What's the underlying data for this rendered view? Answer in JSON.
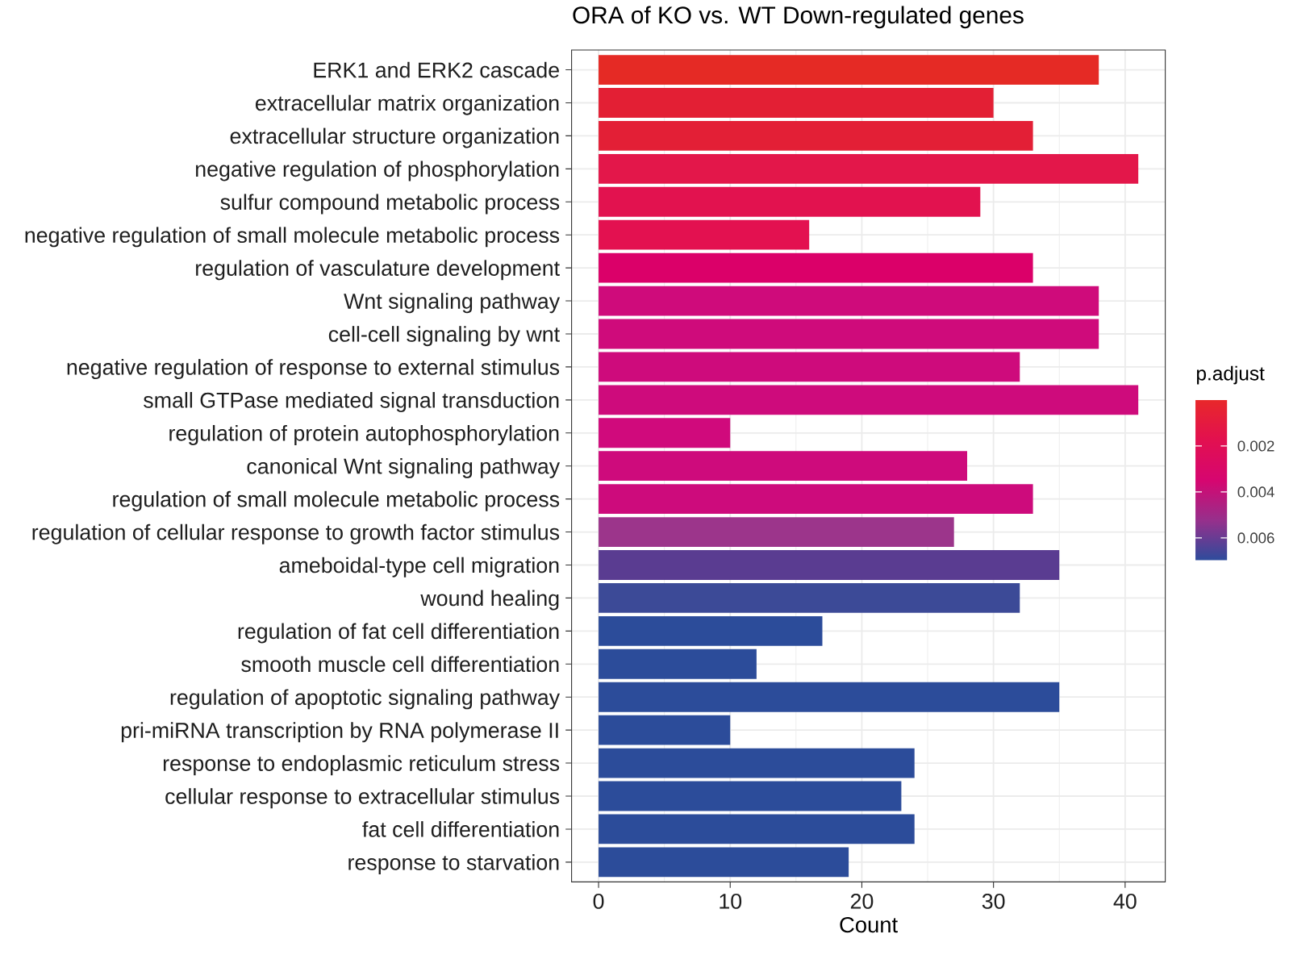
{
  "chart_data": {
    "type": "bar",
    "orientation": "horizontal",
    "title": "ORA of KO vs. WT Down-regulated genes",
    "xlabel": "Count",
    "clabel": "p.adjust",
    "categories": [
      "ERK1 and ERK2 cascade",
      "extracellular matrix organization",
      "extracellular structure organization",
      "negative regulation of phosphorylation",
      "sulfur compound metabolic process",
      "negative regulation of small molecule metabolic process",
      "regulation of vasculature development",
      "Wnt signaling pathway",
      "cell-cell signaling by wnt",
      "negative regulation of response to external stimulus",
      "small GTPase mediated signal transduction",
      "regulation of protein autophosphorylation",
      "canonical Wnt signaling pathway",
      "regulation of small molecule metabolic process",
      "regulation of cellular response to growth factor stimulus",
      "ameboidal-type cell migration",
      "wound healing",
      "regulation of fat cell differentiation",
      "smooth muscle cell differentiation",
      "regulation of apoptotic signaling pathway",
      "pri-miRNA transcription by RNA polymerase II",
      "response to endoplasmic reticulum stress",
      "cellular response to extracellular stimulus",
      "fat cell differentiation",
      "response to starvation"
    ],
    "values": [
      38,
      30,
      33,
      41,
      29,
      16,
      33,
      38,
      38,
      32,
      41,
      10,
      28,
      33,
      27,
      35,
      32,
      17,
      12,
      35,
      10,
      24,
      23,
      24,
      19
    ],
    "colors": [
      "#E52A25",
      "#E31F34",
      "#E31F36",
      "#E3174A",
      "#E2124F",
      "#E31150",
      "#DB0069",
      "#CF0B7B",
      "#CF0B7B",
      "#CE0B7C",
      "#CE0B7C",
      "#D00A7C",
      "#CE0B7C",
      "#CD0B7C",
      "#9C358B",
      "#5A3C91",
      "#3C4A97",
      "#2C4C9A",
      "#2C4C9A",
      "#2C4C9A",
      "#2C4C9A",
      "#2C4C9A",
      "#2C4C9A",
      "#2C4C9A",
      "#2C4C9A"
    ],
    "xlim": [
      -2.05,
      43.05
    ],
    "xticks": [
      0,
      10,
      20,
      30,
      40
    ],
    "clim": [
      0.007,
      0.0
    ],
    "cticks": [
      0.002,
      0.004,
      0.006
    ],
    "grid": true
  }
}
